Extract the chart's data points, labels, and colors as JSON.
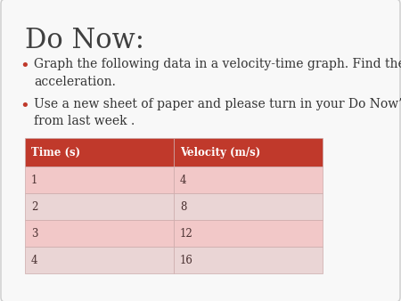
{
  "title": "Do Now:",
  "bullet1": "Graph the following data in a velocity-time graph. Find the\nacceleration.",
  "bullet2": "Use a new sheet of paper and please turn in your Do Now’s\nfrom last week .",
  "col_headers": [
    "Time (s)",
    "Velocity (m/s)"
  ],
  "rows": [
    [
      "1",
      "4"
    ],
    [
      "2",
      "8"
    ],
    [
      "3",
      "12"
    ],
    [
      "4",
      "16"
    ]
  ],
  "header_bg": "#C0392B",
  "row_bg_odd": "#F2C8C8",
  "row_bg_even": "#EAD5D5",
  "header_text_color": "#FFFFFF",
  "row_text_color": "#4A3030",
  "bg_color": "#F8F8F8",
  "title_color": "#404040",
  "bullet_color": "#333333",
  "bullet_dot_color": "#C0392B",
  "fig_width": 4.5,
  "fig_height": 3.38,
  "dpi": 100
}
